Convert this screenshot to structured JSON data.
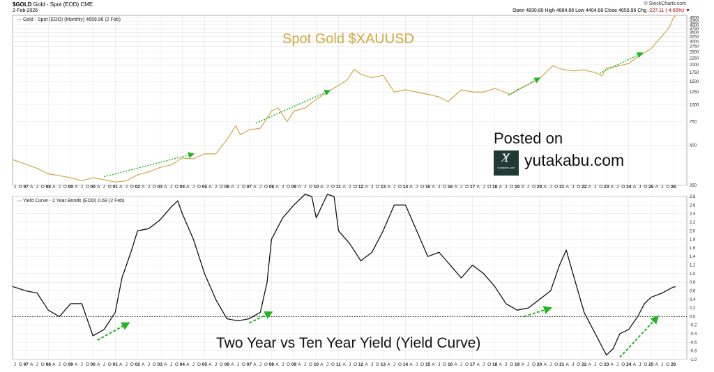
{
  "header": {
    "symbol": "$GOLD",
    "description": "Gold - Spot (EOD) CME",
    "date": "2-Feb-2026",
    "credit": "© StockCharts.com",
    "open_label": "Open",
    "open": "4830.80",
    "high_label": "High",
    "high": "4884.88",
    "low_label": "Low",
    "low": "4404.68",
    "close_label": "Close",
    "close": "4659.96",
    "chg_label": "Chg",
    "chg": "-227.11 (-4.65%)"
  },
  "annotations": {
    "gold_title": "Spot Gold $XAUUSD",
    "yield_title": "Two Year vs Ten Year Yield (Yield Curve)",
    "posted_on": "Posted on",
    "brand": "yutakabu.com",
    "brand_logo": "Y̸",
    "brand_logo_small": "yutakabu.com"
  },
  "colors": {
    "gold_line": "#d4a448",
    "yield_line": "#111111",
    "trend_arrow": "#22b522",
    "grid": "#e4e4e4",
    "brand_bg": "#1f3a33"
  },
  "chart_data": [
    {
      "type": "line",
      "title": "",
      "legend": "Gold - Spot (EOD) (Monthly) 4659.96 (2 Feb)",
      "y_scale": "log",
      "ylim": [
        250,
        4700
      ],
      "y_ticks": [
        250,
        500,
        750,
        1000,
        1250,
        1500,
        1750,
        2000,
        2250,
        2500,
        2750,
        3000,
        3250,
        3500,
        3750,
        4000,
        4250,
        4500
      ],
      "series": [
        {
          "name": "Gold - Spot (EOD)",
          "x": [
            1996.4,
            1997.0,
            1997.5,
            1998.0,
            1998.5,
            1999.0,
            1999.5,
            2000.0,
            2000.5,
            2001.0,
            2001.5,
            2002.0,
            2002.5,
            2003.0,
            2003.5,
            2004.0,
            2004.5,
            2005.0,
            2005.5,
            2006.0,
            2006.4,
            2006.6,
            2007.0,
            2007.5,
            2008.0,
            2008.3,
            2008.7,
            2009.0,
            2009.5,
            2010.0,
            2010.5,
            2011.0,
            2011.4,
            2011.7,
            2012.0,
            2012.5,
            2013.0,
            2013.5,
            2014.0,
            2014.5,
            2015.0,
            2015.5,
            2015.9,
            2016.5,
            2017.0,
            2017.5,
            2018.0,
            2018.7,
            2019.0,
            2019.5,
            2020.0,
            2020.6,
            2021.0,
            2021.5,
            2022.0,
            2022.5,
            2022.8,
            2023.0,
            2023.5,
            2024.0,
            2024.5,
            2025.0,
            2025.5,
            2025.8,
            2026.0,
            2026.1
          ],
          "values": [
            390,
            360,
            335,
            305,
            295,
            285,
            270,
            285,
            275,
            265,
            270,
            300,
            315,
            340,
            355,
            400,
            395,
            430,
            430,
            550,
            700,
            600,
            650,
            670,
            900,
            950,
            750,
            900,
            950,
            1100,
            1250,
            1400,
            1550,
            1850,
            1700,
            1600,
            1670,
            1250,
            1300,
            1250,
            1200,
            1150,
            1060,
            1300,
            1250,
            1250,
            1330,
            1200,
            1300,
            1420,
            1580,
            1970,
            1850,
            1800,
            1830,
            1750,
            1650,
            1900,
            1950,
            2050,
            2350,
            2650,
            3300,
            3800,
            4500,
            4660
          ]
        }
      ],
      "arrows": [
        {
          "from": [
            2000.5,
            290
          ],
          "to": [
            2004.5,
            430
          ]
        },
        {
          "from": [
            2007.3,
            730
          ],
          "to": [
            2010.6,
            1280
          ]
        },
        {
          "from": [
            2018.6,
            1180
          ],
          "to": [
            2020.0,
            1590
          ]
        },
        {
          "from": [
            2022.7,
            1730
          ],
          "to": [
            2024.6,
            2450
          ]
        }
      ]
    },
    {
      "type": "line",
      "title": "",
      "legend": "Yield Curve - 2 Year Bonds (EOD) 0.69 (2 Feb)",
      "ylim": [
        -1.0,
        2.8
      ],
      "y_ticks": [
        -1.0,
        -0.8,
        -0.6,
        -0.4,
        -0.2,
        0.0,
        0.2,
        0.4,
        0.6,
        0.8,
        1.0,
        1.2,
        1.4,
        1.6,
        1.8,
        2.0,
        2.2,
        2.4,
        2.6,
        2.8
      ],
      "reference_line": 0.0,
      "series": [
        {
          "name": "Yield Curve - 2 Year Bonds (EOD)",
          "x": [
            1996.4,
            1997.0,
            1997.5,
            1998.0,
            1998.5,
            1999.0,
            1999.5,
            2000.0,
            2000.5,
            2001.0,
            2001.3,
            2001.7,
            2002.0,
            2002.5,
            2003.0,
            2003.5,
            2003.8,
            2004.0,
            2004.5,
            2005.0,
            2005.5,
            2006.0,
            2006.5,
            2007.0,
            2007.5,
            2007.8,
            2008.0,
            2008.5,
            2009.0,
            2009.5,
            2009.8,
            2010.0,
            2010.5,
            2010.8,
            2011.0,
            2011.5,
            2012.0,
            2012.5,
            2013.0,
            2013.5,
            2014.0,
            2014.5,
            2015.0,
            2015.5,
            2016.0,
            2016.5,
            2017.0,
            2017.5,
            2018.0,
            2018.5,
            2019.0,
            2019.5,
            2020.0,
            2020.5,
            2020.9,
            2021.2,
            2021.5,
            2022.0,
            2022.5,
            2022.8,
            2023.0,
            2023.3,
            2023.6,
            2024.0,
            2024.4,
            2024.7,
            2025.0,
            2025.5,
            2026.0,
            2026.1
          ],
          "values": [
            0.7,
            0.6,
            0.55,
            0.15,
            0.0,
            0.3,
            0.3,
            -0.45,
            -0.3,
            0.1,
            0.9,
            1.5,
            2.0,
            2.05,
            2.25,
            2.55,
            2.7,
            2.4,
            1.8,
            1.0,
            0.4,
            -0.05,
            -0.1,
            -0.05,
            0.1,
            0.8,
            1.8,
            2.3,
            2.6,
            2.85,
            2.8,
            2.3,
            2.85,
            2.8,
            2.0,
            1.7,
            1.3,
            1.5,
            2.0,
            2.6,
            2.6,
            2.0,
            1.4,
            1.5,
            1.2,
            0.9,
            1.2,
            1.0,
            0.7,
            0.3,
            0.15,
            0.2,
            0.4,
            0.6,
            1.2,
            1.55,
            1.0,
            0.1,
            -0.4,
            -0.7,
            -0.9,
            -0.75,
            -0.4,
            -0.3,
            0.0,
            0.3,
            0.45,
            0.55,
            0.69,
            0.69
          ]
        }
      ],
      "arrows": [
        {
          "from": [
            2000.2,
            -0.55
          ],
          "to": [
            2001.6,
            -0.15
          ]
        },
        {
          "from": [
            2007.0,
            -0.15
          ],
          "to": [
            2008.0,
            0.1
          ]
        },
        {
          "from": [
            2019.3,
            0.0
          ],
          "to": [
            2020.5,
            0.2
          ]
        },
        {
          "from": [
            2023.6,
            -0.95
          ],
          "to": [
            2025.3,
            0.0
          ]
        }
      ]
    }
  ],
  "x_axis": {
    "year_labels": [
      "97",
      "98",
      "99",
      "00",
      "01",
      "02",
      "03",
      "04",
      "05",
      "06",
      "07",
      "08",
      "09",
      "10",
      "11",
      "12",
      "13",
      "14",
      "15",
      "16",
      "17",
      "18",
      "19",
      "20",
      "21",
      "22",
      "23",
      "24",
      "25",
      "26"
    ],
    "month_labels": [
      "A",
      "J",
      "O"
    ],
    "first_year": 1997
  }
}
